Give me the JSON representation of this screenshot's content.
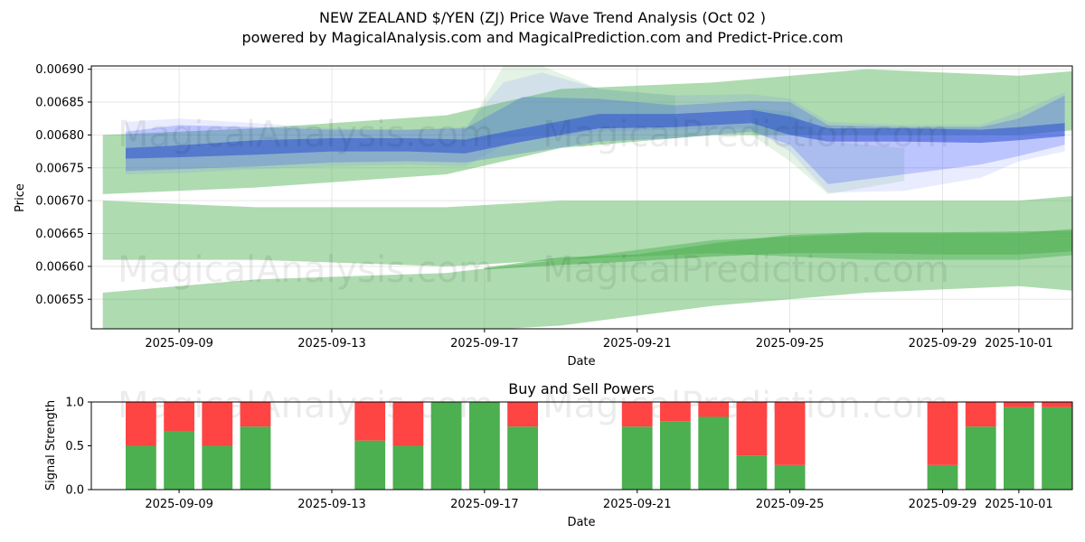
{
  "title_line1": "NEW ZEALAND $/YEN (ZJ) Price Wave Trend Analysis (Oct 02 )",
  "title_line2": "powered by MagicalAnalysis.com and MagicalPrediction.com and Predict-Price.com",
  "watermarks": {
    "left": "MagicalAnalysis.com",
    "right": "MagicalPrediction.com"
  },
  "colors": {
    "band": "#4caf50",
    "wave": "#1e3cff",
    "buy": "#4caf50",
    "sell": "#ff4444"
  },
  "chart_data": [
    {
      "type": "area",
      "title": "Price Wave Trend Analysis",
      "xlabel": "Date",
      "ylabel": "Price",
      "x_range_days": [
        -2.3,
        23.4
      ],
      "ylim": [
        0.006505,
        0.006905
      ],
      "x_ticks": [
        "2025-09-09",
        "2025-09-13",
        "2025-09-17",
        "2025-09-21",
        "2025-09-25",
        "2025-09-29",
        "2025-10-01"
      ],
      "x_tick_days": [
        0,
        4,
        8,
        12,
        16,
        20,
        22
      ],
      "y_ticks": [
        "0.00655",
        "0.00660",
        "0.00665",
        "0.00670",
        "0.00675",
        "0.00680",
        "0.00685",
        "0.00690"
      ],
      "y_tick_values": [
        0.00655,
        0.0066,
        0.00665,
        0.0067,
        0.00675,
        0.0068,
        0.00685,
        0.0069
      ],
      "bands": [
        {
          "name": "upper band",
          "x_days": [
            -2,
            2,
            7,
            10,
            14,
            18,
            22,
            24
          ],
          "upper": [
            0.0068,
            0.00681,
            0.00683,
            0.00687,
            0.00688,
            0.0069,
            0.00689,
            0.0069
          ],
          "lower": [
            0.00671,
            0.00672,
            0.00674,
            0.00678,
            0.0068,
            0.0068,
            0.0068,
            0.00681
          ]
        },
        {
          "name": "middle band",
          "x_days": [
            -2,
            2,
            7,
            10,
            14,
            18,
            22,
            24
          ],
          "upper": [
            0.0067,
            0.00669,
            0.00669,
            0.0067,
            0.0067,
            0.0067,
            0.0067,
            0.00671
          ],
          "lower": [
            0.00661,
            0.00661,
            0.0066,
            0.00661,
            0.00662,
            0.00661,
            0.00661,
            0.00662
          ]
        },
        {
          "name": "lower band",
          "x_days": [
            -2,
            2,
            7,
            10,
            14,
            18,
            22,
            24
          ],
          "upper": [
            0.00656,
            0.00658,
            0.00659,
            0.00661,
            0.00664,
            0.00665,
            0.00665,
            0.00666
          ],
          "lower": [
            0.0065,
            0.0065,
            0.0065,
            0.00651,
            0.00654,
            0.00656,
            0.00657,
            0.00656
          ]
        },
        {
          "name": "inner band",
          "x_days": [
            8,
            10,
            12,
            14,
            16,
            18,
            20,
            22,
            24
          ],
          "upper": [
            0.006598,
            0.006614,
            0.006618,
            0.006635,
            0.006648,
            0.006652,
            0.006652,
            0.006653,
            0.006655
          ],
          "lower": [
            0.006595,
            0.006602,
            0.006608,
            0.006615,
            0.00662,
            0.00662,
            0.006618,
            0.006618,
            0.006625
          ]
        }
      ],
      "waves": [
        {
          "name": "wave core",
          "x_days": [
            -1.4,
            0,
            2,
            4,
            6,
            7.5,
            9,
            11,
            13,
            15,
            16,
            17,
            19,
            21,
            22,
            23.2
          ],
          "upper": [
            0.00678,
            0.006784,
            0.006792,
            0.006795,
            0.006795,
            0.006793,
            0.00681,
            0.006832,
            0.006832,
            0.006838,
            0.006828,
            0.00681,
            0.00681,
            0.006808,
            0.006812,
            0.006818
          ],
          "lower": [
            0.006764,
            0.006766,
            0.00677,
            0.006775,
            0.006775,
            0.006772,
            0.00679,
            0.00681,
            0.006812,
            0.006818,
            0.0068,
            0.00679,
            0.00679,
            0.006788,
            0.006792,
            0.006798
          ]
        },
        {
          "name": "wave spread",
          "x_days": [
            -1.4,
            0,
            2,
            4,
            6,
            7.5,
            9,
            11,
            13,
            15,
            16,
            17,
            19,
            21,
            22,
            23.2
          ],
          "upper": [
            0.006805,
            0.006815,
            0.006812,
            0.006808,
            0.006808,
            0.00681,
            0.006858,
            0.006855,
            0.006845,
            0.006852,
            0.00685,
            0.006815,
            0.006812,
            0.006812,
            0.006825,
            0.00686
          ],
          "lower": [
            0.006745,
            0.006748,
            0.006752,
            0.006758,
            0.00676,
            0.006758,
            0.006772,
            0.00679,
            0.006795,
            0.006805,
            0.006785,
            0.006725,
            0.00674,
            0.006755,
            0.006768,
            0.006785
          ]
        },
        {
          "name": "wave outer",
          "x_days": [
            -1.4,
            0,
            2,
            4,
            6,
            7.5,
            8.5,
            9.5,
            11,
            13,
            15,
            16,
            17,
            19,
            21,
            22,
            23.2
          ],
          "upper": [
            0.00682,
            0.006825,
            0.006818,
            0.00681,
            0.006808,
            0.006812,
            0.00688,
            0.006895,
            0.00687,
            0.00686,
            0.006862,
            0.006855,
            0.00682,
            0.006815,
            0.006815,
            0.006835,
            0.006865
          ],
          "lower": [
            0.00674,
            0.006742,
            0.006748,
            0.006752,
            0.006755,
            0.006752,
            0.006785,
            0.006795,
            0.006805,
            0.006808,
            0.00681,
            0.006775,
            0.006712,
            0.006715,
            0.006735,
            0.00676,
            0.006775
          ]
        }
      ]
    },
    {
      "type": "bar",
      "title": "Buy and Sell Powers",
      "xlabel": "Date",
      "ylabel": "Signal Strength",
      "ylim": [
        0,
        1
      ],
      "x_range_days": [
        -2.3,
        23.4
      ],
      "x_ticks": [
        "2025-09-09",
        "2025-09-13",
        "2025-09-17",
        "2025-09-21",
        "2025-09-25",
        "2025-09-29",
        "2025-10-01"
      ],
      "x_tick_days": [
        0,
        4,
        8,
        12,
        16,
        20,
        22
      ],
      "y_ticks": [
        "0.0",
        "0.5",
        "1.0"
      ],
      "y_tick_values": [
        0,
        0.5,
        1
      ],
      "categories_days": [
        -1,
        0,
        1,
        2,
        5,
        6,
        7,
        8,
        9,
        12,
        13,
        14,
        15,
        16,
        20,
        21,
        22,
        23
      ],
      "series": [
        {
          "name": "Buy",
          "values": [
            0.5,
            0.67,
            0.5,
            0.72,
            0.56,
            0.5,
            1.0,
            1.0,
            0.72,
            0.72,
            0.78,
            0.83,
            0.39,
            0.28,
            0.28,
            0.72,
            0.94,
            0.94
          ]
        },
        {
          "name": "Sell",
          "values": [
            0.5,
            0.33,
            0.5,
            0.28,
            0.44,
            0.5,
            0.0,
            0.0,
            0.28,
            0.28,
            0.22,
            0.17,
            0.61,
            0.72,
            0.72,
            0.28,
            0.06,
            0.06
          ]
        }
      ]
    }
  ]
}
